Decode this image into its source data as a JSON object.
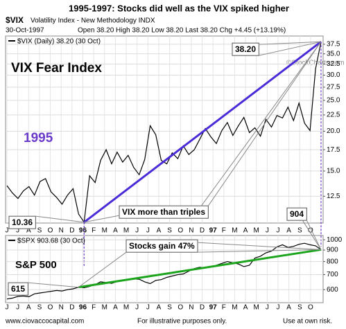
{
  "header": {
    "title": "1995-1997:  Stocks did well as the VIX spiked higher",
    "symbol": "$VIX",
    "description": "Volatility Index - New Methodology  INDX",
    "date": "30-Oct-1997",
    "quote": "Open 38.20  High 38.20  Low 38.20  Last 38.20  Chg +4.45 (+13.19%)",
    "watermark": "©StockCharts.com"
  },
  "chart_data": [
    {
      "type": "line",
      "legend": "$VIX (Daily) 38.20 (30 Oct)",
      "log_scale": true,
      "grid": true,
      "ylim": [
        10.3,
        39.8
      ],
      "yticks": [
        12.5,
        {
          "value": 15,
          "label": "15.0"
        },
        17.5,
        {
          "value": 20,
          "label": "20.0"
        },
        22.5,
        {
          "value": 25,
          "label": "25.0"
        },
        27.5,
        {
          "value": 30,
          "label": "30.0"
        },
        32.5,
        {
          "value": 35,
          "label": "35.0"
        },
        37.5
      ],
      "month_labels": [
        "J",
        "J",
        "A",
        "S",
        "O",
        "N",
        "D",
        "96",
        "F",
        "M",
        "A",
        "M",
        "J",
        "J",
        "A",
        "S",
        "O",
        "N",
        "D",
        "97",
        "F",
        "M",
        "A",
        "M",
        "J",
        "J",
        "A",
        "S",
        "O"
      ],
      "series": [
        {
          "name": "$VIX",
          "color": "#000000",
          "values": [
            13.5,
            12.8,
            12.3,
            13.0,
            13.4,
            12.6,
            13.9,
            14.2,
            12.9,
            12.4,
            11.8,
            12.6,
            13.2,
            11.0,
            10.36,
            14.5,
            13.8,
            16.2,
            17.5,
            15.8,
            17.2,
            16.0,
            16.8,
            15.4,
            14.6,
            16.3,
            20.8,
            19.5,
            16.2,
            15.8,
            17.1,
            16.4,
            18.0,
            16.9,
            17.5,
            18.9,
            20.4,
            19.2,
            18.3,
            20.1,
            21.3,
            19.4,
            20.8,
            22.1,
            19.8,
            20.5,
            19.3,
            21.8,
            20.6,
            22.4,
            22.0,
            23.8,
            21.6,
            24.5,
            21.2,
            20.1,
            31.4,
            38.2
          ]
        }
      ],
      "texts": [
        "VIX Fear Index",
        "1995"
      ],
      "note": "VIX more than triples",
      "trendline_color": "#4b2bd8",
      "callouts": [
        {
          "value": 10.36,
          "label": "10.36"
        },
        {
          "value": 38.2,
          "label": "38.20"
        }
      ]
    },
    {
      "type": "line",
      "legend": "$SPX 903.68 (30 Oct)",
      "log_scale": true,
      "grid": true,
      "ylim": [
        525,
        1045
      ],
      "yticks": [
        600,
        700,
        800,
        900,
        1000
      ],
      "month_labels": [
        "J",
        "J",
        "A",
        "S",
        "O",
        "N",
        "D",
        "96",
        "F",
        "M",
        "A",
        "M",
        "J",
        "J",
        "A",
        "S",
        "O",
        "N",
        "D",
        "97",
        "F",
        "M",
        "A",
        "M",
        "J",
        "J",
        "A",
        "S",
        "O"
      ],
      "series": [
        {
          "name": "$SPX",
          "color": "#000000",
          "values": [
            545,
            550,
            560,
            562,
            558,
            575,
            580,
            585,
            590,
            595,
            592,
            600,
            605,
            615,
            612,
            620,
            632,
            650,
            645,
            640,
            652,
            658,
            665,
            670,
            668,
            650,
            638,
            660,
            665,
            680,
            690,
            700,
            705,
            725,
            745,
            755,
            750,
            760,
            770,
            785,
            800,
            790,
            780,
            760,
            770,
            830,
            845,
            875,
            890,
            930,
            950,
            925,
            935,
            955,
            965,
            950,
            940,
            904
          ]
        }
      ],
      "texts": [
        "S&P 500"
      ],
      "note": "Stocks gain 47%",
      "trendline_color": "#1ca41c",
      "callouts": [
        {
          "value": 615,
          "label": "615"
        },
        {
          "value": 904,
          "label": "904"
        }
      ]
    }
  ],
  "footer": [
    "www.ciovaccocapital.com",
    "For illustrative purposes only.",
    "Use at own risk."
  ]
}
